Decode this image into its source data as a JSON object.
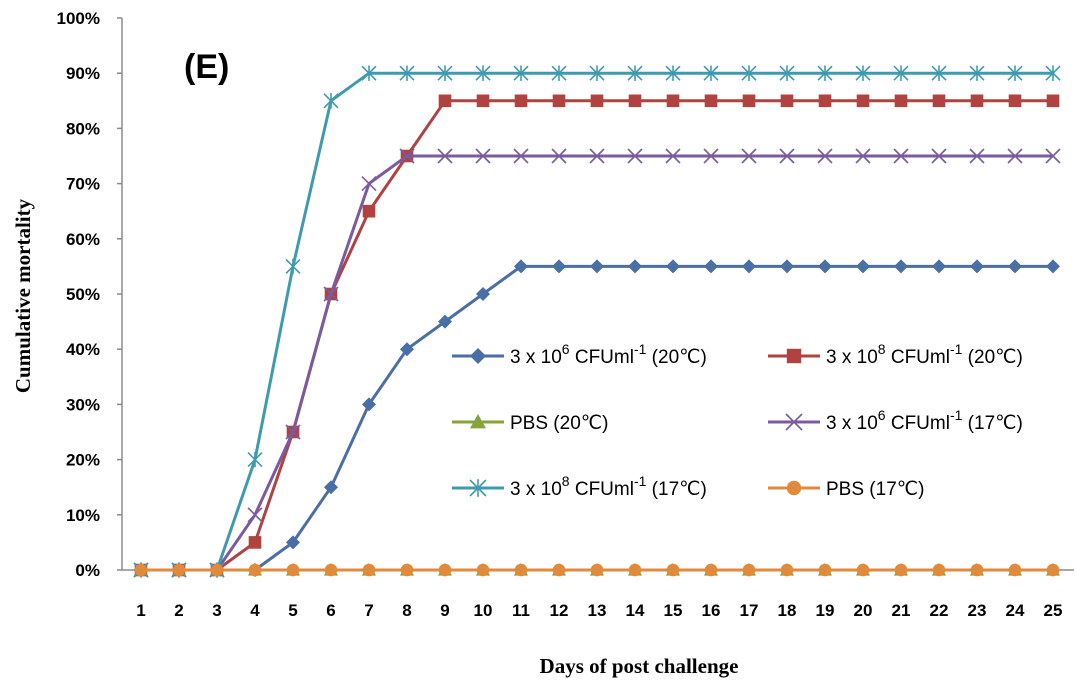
{
  "chart_data": {
    "type": "line",
    "panel_label": "(E)",
    "xlabel": "Days of post challenge",
    "ylabel": "Cumulative mortality",
    "x": [
      1,
      2,
      3,
      4,
      5,
      6,
      7,
      8,
      9,
      10,
      11,
      12,
      13,
      14,
      15,
      16,
      17,
      18,
      19,
      20,
      21,
      22,
      23,
      24,
      25
    ],
    "ylim": [
      0,
      100
    ],
    "y_ticks": [
      "0%",
      "10%",
      "20%",
      "30%",
      "40%",
      "50%",
      "60%",
      "70%",
      "80%",
      "90%",
      "100%"
    ],
    "grid": false,
    "legend_position": "center-right",
    "series": [
      {
        "name": "3 x 10^6 CFUml^-1 (20℃)",
        "label_parts": [
          "3 x 10",
          "6",
          " CFUml",
          "-1",
          " (20℃)"
        ],
        "color": "#4A6FA5",
        "marker": "diamond",
        "values": [
          0,
          0,
          0,
          0,
          5,
          15,
          30,
          40,
          45,
          50,
          55,
          55,
          55,
          55,
          55,
          55,
          55,
          55,
          55,
          55,
          55,
          55,
          55,
          55,
          55
        ]
      },
      {
        "name": "3 x 10^8 CFUml^-1 (20℃)",
        "label_parts": [
          "3 x 10",
          "8",
          " CFUml",
          "-1",
          " (20℃)"
        ],
        "color": "#B0423F",
        "marker": "square",
        "values": [
          0,
          0,
          0,
          5,
          25,
          50,
          65,
          75,
          85,
          85,
          85,
          85,
          85,
          85,
          85,
          85,
          85,
          85,
          85,
          85,
          85,
          85,
          85,
          85,
          85
        ]
      },
      {
        "name": "PBS (20℃)",
        "label_parts": [
          "PBS (20℃)"
        ],
        "color": "#86A33C",
        "marker": "triangle",
        "values": [
          0,
          0,
          0,
          0,
          0,
          0,
          0,
          0,
          0,
          0,
          0,
          0,
          0,
          0,
          0,
          0,
          0,
          0,
          0,
          0,
          0,
          0,
          0,
          0,
          0
        ]
      },
      {
        "name": "3 x 10^6 CFUml^-1 (17℃)",
        "label_parts": [
          "3 x 10",
          "6",
          " CFUml",
          "-1",
          " (17℃)"
        ],
        "color": "#7B5B9E",
        "marker": "x",
        "values": [
          0,
          0,
          0,
          10,
          25,
          50,
          70,
          75,
          75,
          75,
          75,
          75,
          75,
          75,
          75,
          75,
          75,
          75,
          75,
          75,
          75,
          75,
          75,
          75,
          75
        ]
      },
      {
        "name": "3 x 10^8 CFUml^-1 (17℃)",
        "label_parts": [
          "3 x 10",
          "8",
          " CFUml",
          "-1",
          " (17℃)"
        ],
        "color": "#3E9BAF",
        "marker": "star",
        "values": [
          0,
          0,
          0,
          20,
          55,
          85,
          90,
          90,
          90,
          90,
          90,
          90,
          90,
          90,
          90,
          90,
          90,
          90,
          90,
          90,
          90,
          90,
          90,
          90,
          90
        ]
      },
      {
        "name": "PBS (17℃)",
        "label_parts": [
          "PBS (17℃)"
        ],
        "color": "#E08A3A",
        "marker": "circle",
        "values": [
          0,
          0,
          0,
          0,
          0,
          0,
          0,
          0,
          0,
          0,
          0,
          0,
          0,
          0,
          0,
          0,
          0,
          0,
          0,
          0,
          0,
          0,
          0,
          0,
          0
        ]
      }
    ]
  }
}
